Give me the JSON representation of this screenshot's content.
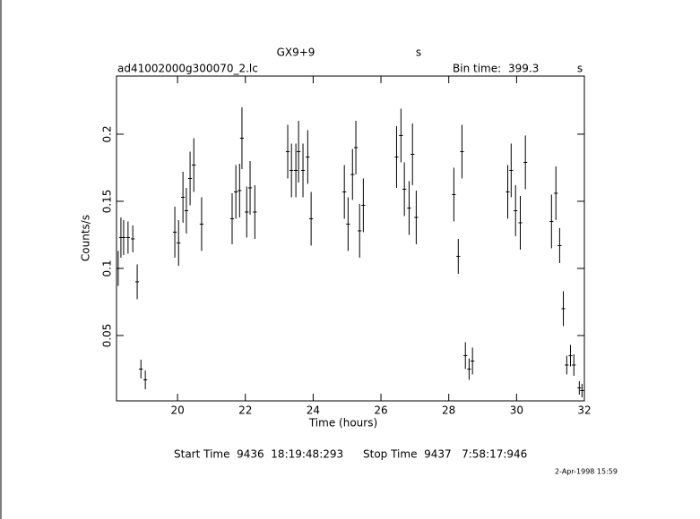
{
  "chart_data": {
    "type": "scatter",
    "title": "GX9+9",
    "title_unit": "s",
    "file_name": "ad41002000g300070_2.lc",
    "bin_time": {
      "label": "Bin time:",
      "value": 399.3,
      "unit": "s"
    },
    "xlabel": "Time (hours)",
    "ylabel": "Counts/s",
    "start_time": "Start Time  9436  18:19:48:293",
    "stop_time": "Stop Time  9437   7:58:17:946",
    "date": "2-Apr-1998 15:59",
    "xlim": [
      18.2,
      32
    ],
    "xticks": [
      20,
      22,
      24,
      26,
      28,
      30,
      32
    ],
    "ylim": [
      0.0013,
      0.2433
    ],
    "yticks": [
      0.05,
      0.1,
      0.15,
      0.2
    ],
    "color": "#000000",
    "x": [
      18.25,
      18.33,
      18.41,
      18.54,
      18.68,
      18.81,
      18.92,
      19.05,
      19.92,
      20.03,
      20.16,
      20.26,
      20.37,
      20.48,
      20.71,
      21.61,
      21.72,
      21.83,
      21.9,
      22.04,
      22.14,
      22.28,
      23.25,
      23.36,
      23.49,
      23.57,
      23.7,
      23.84,
      23.94,
      24.92,
      25.03,
      25.16,
      25.26,
      25.37,
      25.48,
      26.46,
      26.59,
      26.69,
      26.83,
      26.93,
      27.04,
      28.15,
      28.28,
      28.39,
      28.49,
      28.6,
      28.7,
      29.74,
      29.84,
      29.97,
      30.11,
      30.26,
      31.03,
      31.16,
      31.27,
      31.38,
      31.48,
      31.59,
      31.69,
      31.85,
      31.93
    ],
    "values": [
      0.1,
      0.123,
      0.123,
      0.123,
      0.122,
      0.09,
      0.025,
      0.017,
      0.127,
      0.119,
      0.153,
      0.143,
      0.167,
      0.177,
      0.133,
      0.137,
      0.157,
      0.158,
      0.197,
      0.142,
      0.16,
      0.142,
      0.187,
      0.173,
      0.173,
      0.187,
      0.173,
      0.183,
      0.137,
      0.157,
      0.133,
      0.17,
      0.19,
      0.128,
      0.147,
      0.183,
      0.199,
      0.159,
      0.145,
      0.185,
      0.138,
      0.155,
      0.109,
      0.187,
      0.035,
      0.025,
      0.031,
      0.157,
      0.173,
      0.143,
      0.134,
      0.179,
      0.135,
      0.156,
      0.117,
      0.07,
      0.028,
      0.035,
      0.028,
      0.011,
      0.009
    ],
    "yerr": [
      0.013,
      0.015,
      0.013,
      0.012,
      0.01,
      0.013,
      0.007,
      0.007,
      0.019,
      0.017,
      0.019,
      0.017,
      0.02,
      0.02,
      0.02,
      0.019,
      0.02,
      0.02,
      0.023,
      0.019,
      0.02,
      0.02,
      0.02,
      0.02,
      0.02,
      0.023,
      0.02,
      0.02,
      0.02,
      0.02,
      0.02,
      0.019,
      0.02,
      0.02,
      0.02,
      0.023,
      0.02,
      0.02,
      0.02,
      0.023,
      0.02,
      0.02,
      0.013,
      0.02,
      0.01,
      0.008,
      0.01,
      0.02,
      0.02,
      0.019,
      0.02,
      0.02,
      0.02,
      0.02,
      0.013,
      0.013,
      0.007,
      0.008,
      0.008,
      0.005,
      0.005
    ]
  }
}
